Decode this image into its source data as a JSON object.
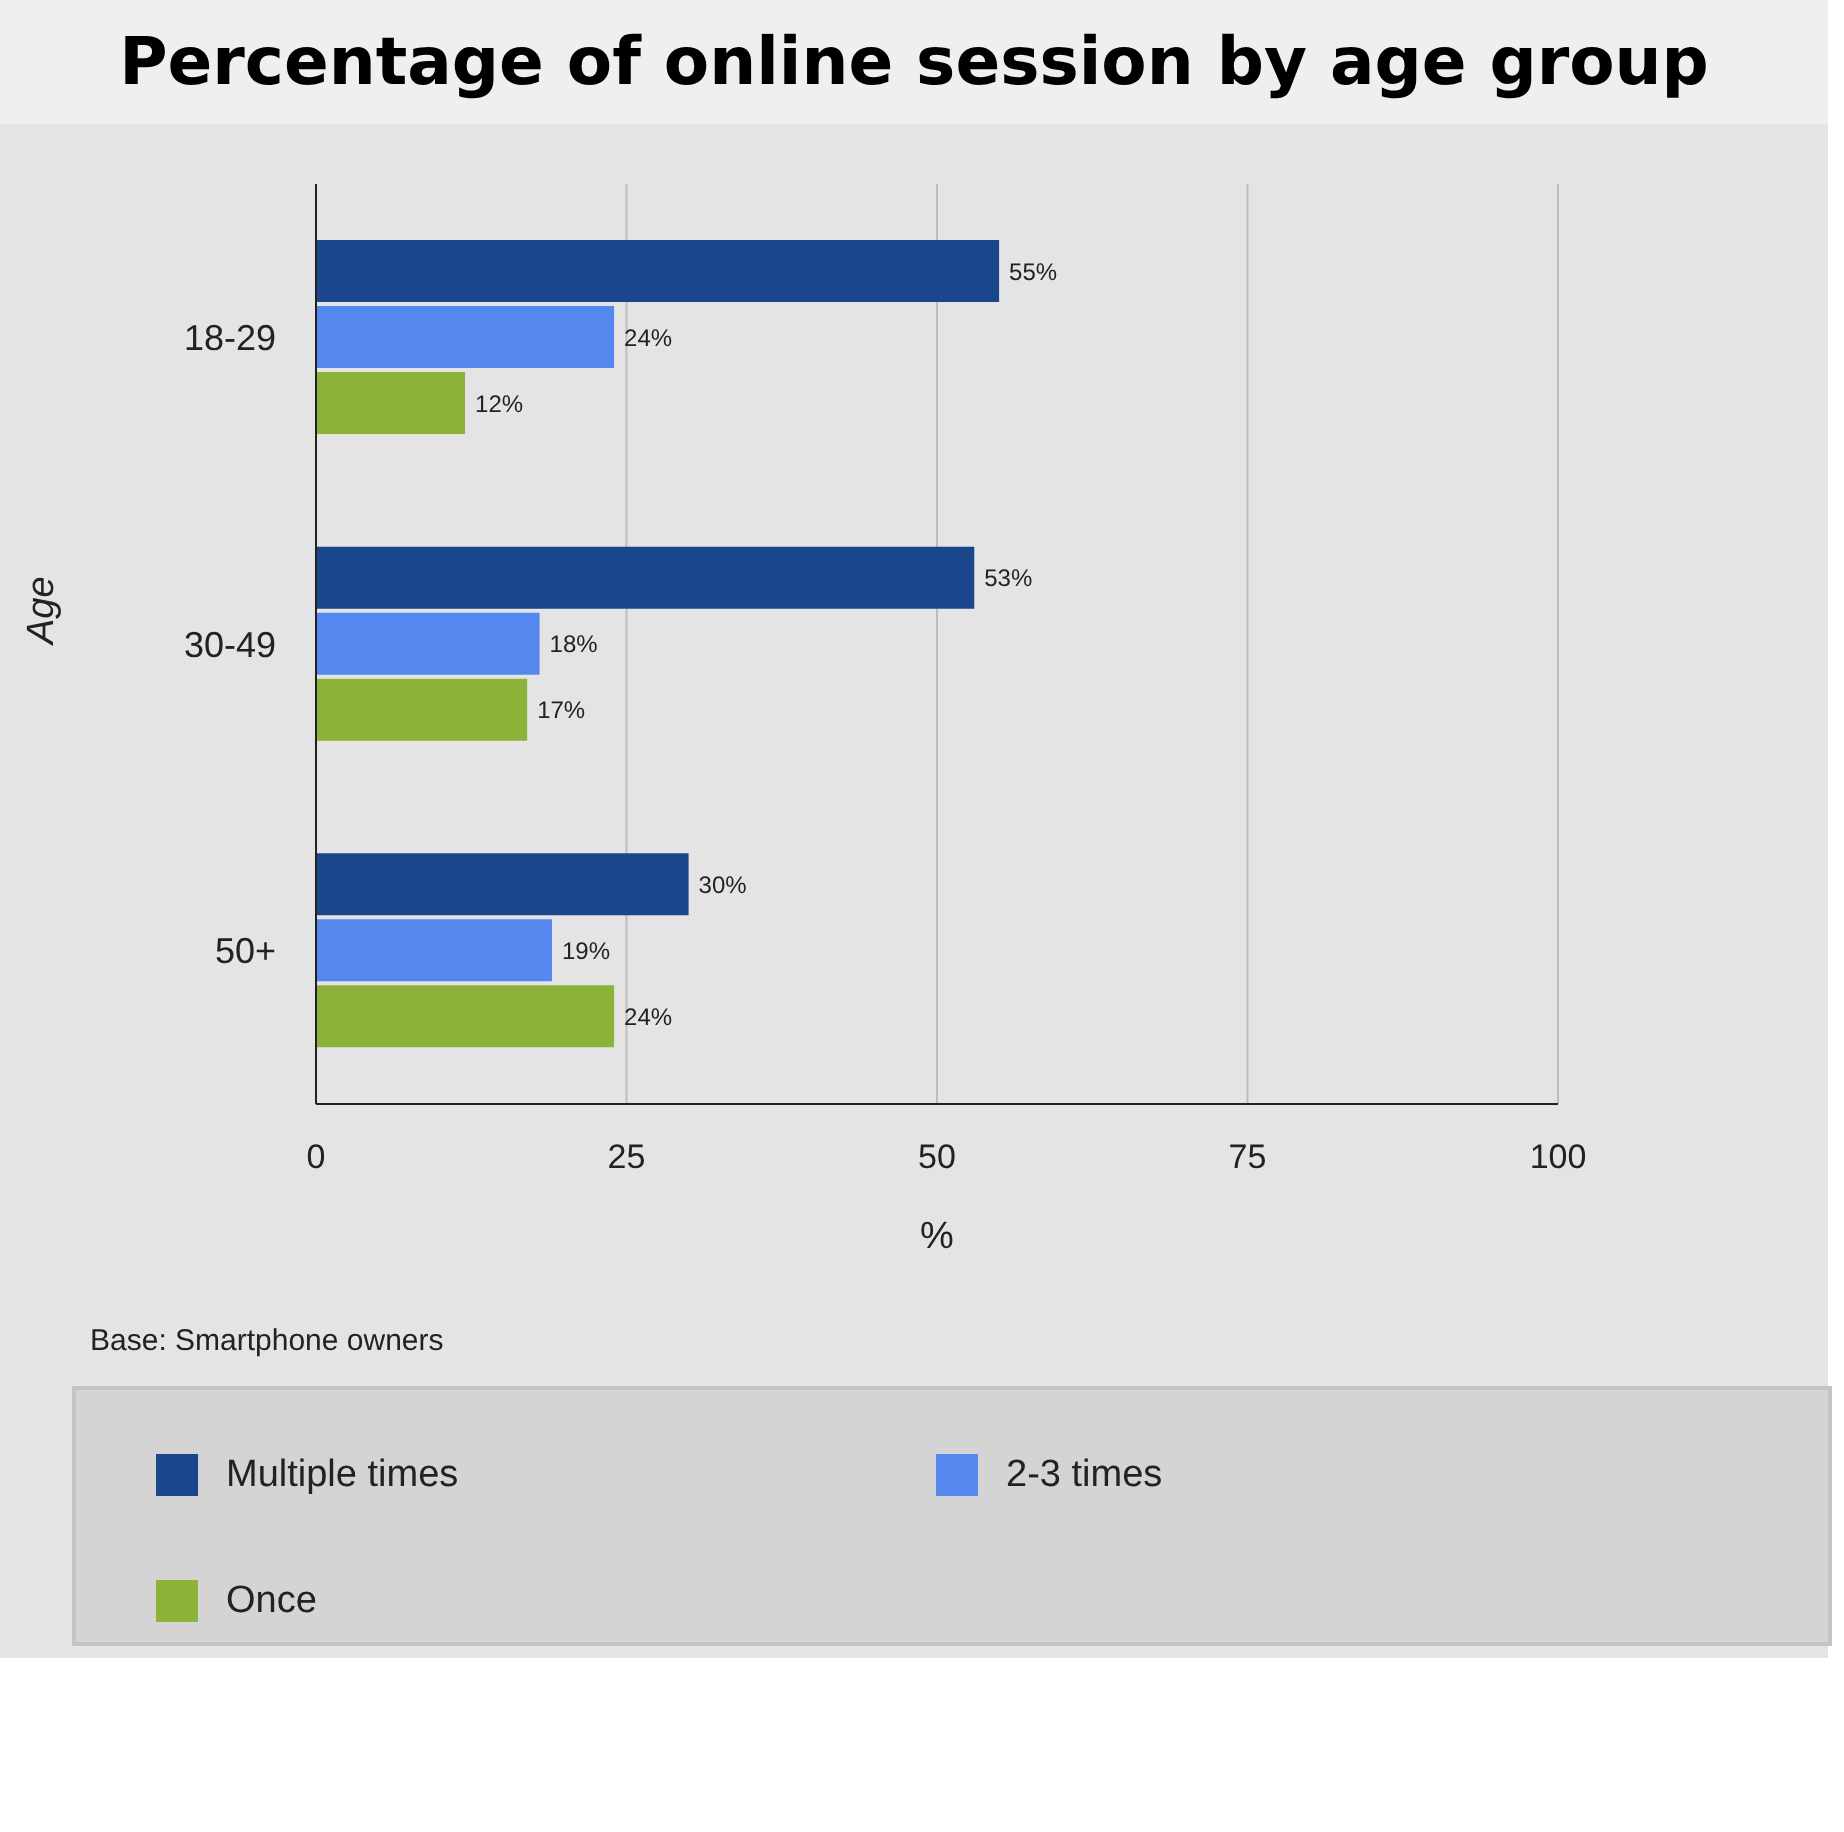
{
  "chart_data": {
    "type": "bar",
    "orientation": "horizontal",
    "title": "Percentage of online session by age group",
    "xlabel": "%",
    "ylabel": "Age",
    "categories": [
      "18-29",
      "30-49",
      "50+"
    ],
    "series": [
      {
        "name": "Multiple times",
        "color": "#1a478b",
        "values": [
          55,
          53,
          30
        ],
        "value_labels": [
          "55%",
          "53%",
          "30%"
        ]
      },
      {
        "name": "2-3 times",
        "color": "#5488ee",
        "values": [
          24,
          18,
          19
        ],
        "value_labels": [
          "24%",
          "18%",
          "19%"
        ]
      },
      {
        "name": "Once",
        "color": "#8db23a",
        "values": [
          12,
          17,
          24
        ],
        "value_labels": [
          "12%",
          "17%",
          "24%"
        ]
      }
    ],
    "xlim": [
      0,
      100
    ],
    "xticks": [
      0,
      25,
      50,
      75,
      100
    ],
    "grid": "x",
    "legend": "bottom",
    "annotations": [
      "Base: Smartphone owners"
    ]
  }
}
